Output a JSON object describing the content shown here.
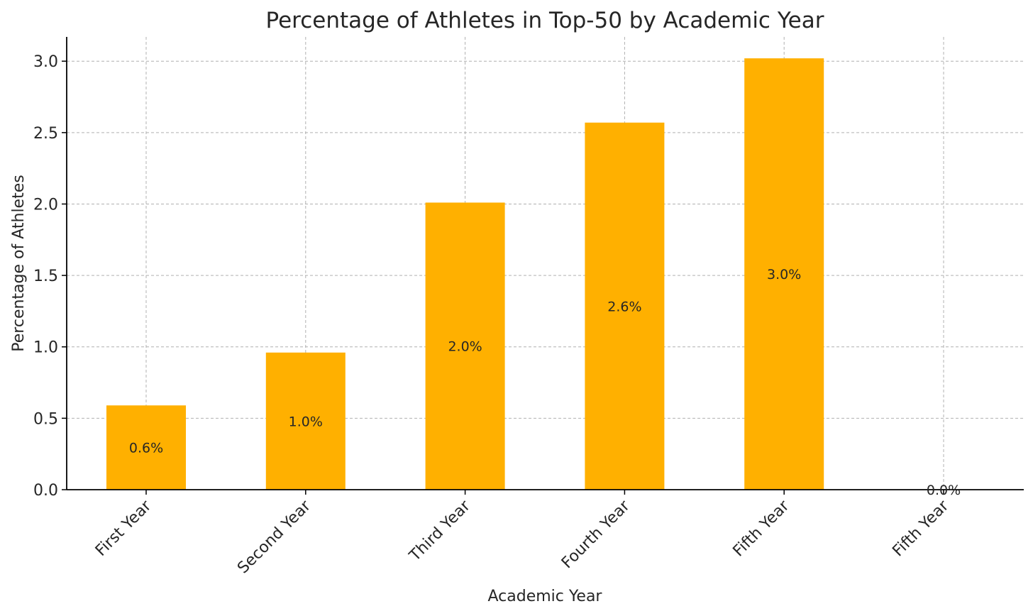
{
  "chart_data": {
    "type": "bar",
    "title": "Percentage of Athletes in Top-50 by Academic Year",
    "xlabel": "Academic Year",
    "ylabel": "Percentage of Athletes",
    "categories": [
      "First Year",
      "Second Year",
      "Third Year",
      "Fourth Year",
      "Fifth Year",
      "Fifth Year"
    ],
    "values": [
      0.59,
      0.96,
      2.01,
      2.57,
      3.02,
      0.0
    ],
    "data_labels": [
      "0.6%",
      "1.0%",
      "2.0%",
      "2.6%",
      "3.0%",
      "0.0%"
    ],
    "ylim": [
      0,
      3.17
    ],
    "yticks": [
      0.0,
      0.5,
      1.0,
      1.5,
      2.0,
      2.5,
      3.0
    ],
    "ytick_labels": [
      "0.0",
      "0.5",
      "1.0",
      "1.5",
      "2.0",
      "2.5",
      "3.0"
    ],
    "grid": true,
    "bar_color": "#FFB000"
  }
}
